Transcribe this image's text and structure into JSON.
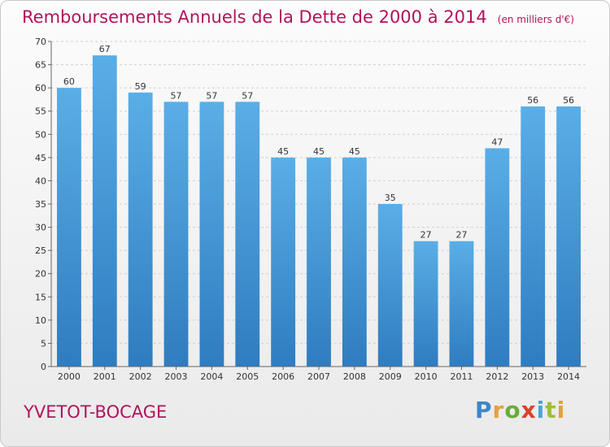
{
  "title": "Remboursements Annuels de la Dette de 2000 à 2014",
  "subtitle": "(en milliers d'€)",
  "commune": "YVETOT-BOCAGE",
  "logo": {
    "p": "P",
    "r": "r",
    "o": "o",
    "x": "x",
    "i1": "i",
    "t": "t",
    "i2": "i"
  },
  "chart_data": {
    "type": "bar",
    "title": "Remboursements Annuels de la Dette de 2000 à 2014",
    "subtitle": "(en milliers d'€)",
    "categories": [
      "2000",
      "2001",
      "2002",
      "2003",
      "2004",
      "2005",
      "2006",
      "2007",
      "2008",
      "2009",
      "2010",
      "2011",
      "2012",
      "2013",
      "2014"
    ],
    "values": [
      60,
      67,
      59,
      57,
      57,
      57,
      45,
      45,
      45,
      35,
      27,
      27,
      47,
      56,
      56
    ],
    "ylim": [
      0,
      70
    ],
    "yticks": [
      0,
      5,
      10,
      15,
      20,
      25,
      30,
      35,
      40,
      45,
      50,
      55,
      60,
      65,
      70
    ],
    "xlabel": "",
    "ylabel": "",
    "grid": true,
    "bar_color": "#3f93d6"
  }
}
